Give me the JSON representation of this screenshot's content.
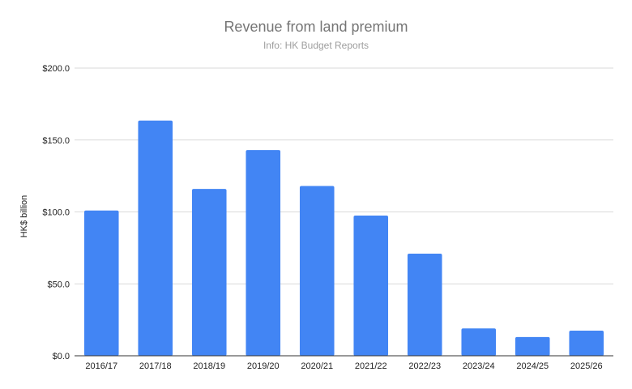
{
  "chart_data": {
    "type": "bar",
    "title": "Revenue from land premium",
    "subtitle": "Info: HK Budget Reports",
    "ylabel": "HK$ billion",
    "xlabel": "",
    "categories": [
      "2016/17",
      "2017/18",
      "2018/19",
      "2019/20",
      "2020/21",
      "2021/22",
      "2022/23",
      "2023/24",
      "2024/25",
      "2025/26"
    ],
    "values": [
      101.0,
      163.5,
      116.0,
      143.0,
      118.0,
      97.5,
      71.0,
      19.0,
      13.0,
      17.5
    ],
    "ylim": [
      0,
      200
    ],
    "yticks": [
      0,
      50,
      100,
      150,
      200
    ],
    "ytick_labels": [
      "$0.0",
      "$50.0",
      "$100.0",
      "$150.0",
      "$200.0"
    ],
    "grid": true,
    "legend": "none",
    "colors": {
      "bar": "#4285f4"
    }
  }
}
